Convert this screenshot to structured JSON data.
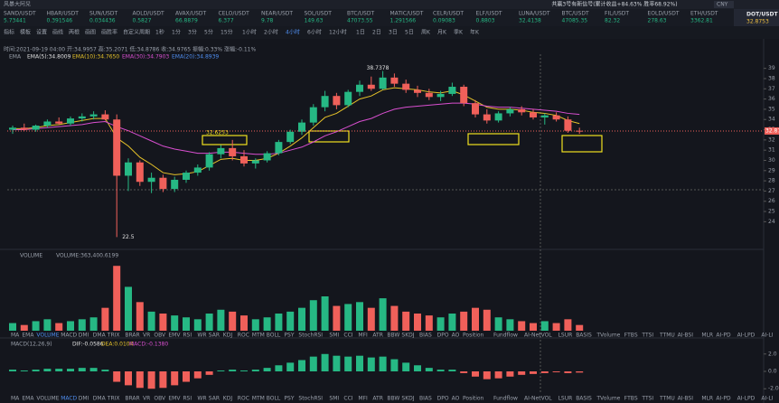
{
  "app": {
    "title": "风暴大阿兒",
    "signal": "共赢3号有新信号(累计收益+84.63% 胜率68.92%)",
    "currency": "CNY"
  },
  "tickers": [
    [
      "SAND/USDT",
      "5.73441"
    ],
    [
      "HBAR/USDT",
      "0.391546"
    ],
    [
      "SUN/USDT",
      "0.034436"
    ],
    [
      "AOLD/USDT",
      "0.5827"
    ],
    [
      "AVAX/USDT",
      "66.8879"
    ],
    [
      "CELO/USDT",
      "6.377"
    ],
    [
      "NEAR/USDT",
      "9.78"
    ],
    [
      "SOL/USDT",
      "149.63"
    ],
    [
      "BTC/USDT",
      "47073.55"
    ],
    [
      "MATIC/USDT",
      "1.291566"
    ],
    [
      "CELR/USDT",
      "0.09083"
    ],
    [
      "ELF/USDT",
      "0.8803"
    ],
    [
      "LUNA/USDT",
      "32.4138"
    ],
    [
      "BTC/USDT",
      "47085.35"
    ],
    [
      "FIL/USDT",
      "82.32"
    ],
    [
      "EOLD/USDT",
      "278.63"
    ],
    [
      "ETH/USDT",
      "3362.81"
    ]
  ],
  "toolbar": [
    "指标",
    "模板",
    "设置",
    "画线",
    "两根",
    "画图",
    "画胜率",
    "自定义周期",
    "1秒",
    "1分",
    "3分",
    "5分",
    "15分",
    "1小时",
    "2小时",
    "4小时",
    "6小时",
    "12小时",
    "1日",
    "2日",
    "3日",
    "5日",
    "周K",
    "月K",
    "季K",
    "年K"
  ],
  "symbol": {
    "name": "DOT/USDT",
    "price": "32.8753"
  },
  "info": {
    "bar": "时间:2021-09-19 04:00 开:34.9957 高:35.2071 低:34.8786 收:34.9765 振幅:0.33% 涨幅:-0.11%",
    "ema_name": "EMA",
    "ema5": "EMA(5):34.8009",
    "ema10": "EMA(10):34.7650",
    "ema30": "EMA(30):34.7903",
    "ema20": "EMA(20):34.8939"
  },
  "chart": {
    "type": "candlestick",
    "candles": [
      [
        33.0,
        33.4,
        32.6,
        33.2
      ],
      [
        33.2,
        33.6,
        32.9,
        33.0
      ],
      [
        33.0,
        33.5,
        32.8,
        33.4
      ],
      [
        33.4,
        34.0,
        33.2,
        33.8
      ],
      [
        33.8,
        34.2,
        33.5,
        33.6
      ],
      [
        33.6,
        34.3,
        33.4,
        34.1
      ],
      [
        34.1,
        34.6,
        33.8,
        34.3
      ],
      [
        34.3,
        34.8,
        34.0,
        34.5
      ],
      [
        34.5,
        34.9,
        33.9,
        34.0
      ],
      [
        34.0,
        34.5,
        22.5,
        28.5
      ],
      [
        28.5,
        30.2,
        27.0,
        29.8
      ],
      [
        29.8,
        30.0,
        27.5,
        27.9
      ],
      [
        27.9,
        28.8,
        26.8,
        28.3
      ],
      [
        28.3,
        28.6,
        26.9,
        27.2
      ],
      [
        27.2,
        28.4,
        26.9,
        28.1
      ],
      [
        28.1,
        29.0,
        27.8,
        28.8
      ],
      [
        28.8,
        29.6,
        28.5,
        29.3
      ],
      [
        29.3,
        30.8,
        29.0,
        30.6
      ],
      [
        30.6,
        31.5,
        30.2,
        31.2
      ],
      [
        31.2,
        32.0,
        30.0,
        30.4
      ],
      [
        30.4,
        31.0,
        29.4,
        29.7
      ],
      [
        29.7,
        30.2,
        29.2,
        30.0
      ],
      [
        30.0,
        30.9,
        29.8,
        30.7
      ],
      [
        30.7,
        32.0,
        30.5,
        31.8
      ],
      [
        31.8,
        33.0,
        31.6,
        32.8
      ],
      [
        32.8,
        34.0,
        32.5,
        33.7
      ],
      [
        33.7,
        35.5,
        33.4,
        35.2
      ],
      [
        35.2,
        36.8,
        34.8,
        36.3
      ],
      [
        36.3,
        36.6,
        35.0,
        35.4
      ],
      [
        35.4,
        36.9,
        35.2,
        36.7
      ],
      [
        36.7,
        37.8,
        36.3,
        37.4
      ],
      [
        37.4,
        38.2,
        36.8,
        37.0
      ],
      [
        37.0,
        38.7378,
        36.9,
        38.1
      ],
      [
        38.1,
        38.5,
        37.2,
        37.5
      ],
      [
        37.5,
        37.9,
        36.6,
        36.9
      ],
      [
        36.9,
        37.3,
        36.2,
        36.6
      ],
      [
        36.6,
        37.0,
        35.9,
        36.2
      ],
      [
        36.2,
        36.8,
        35.8,
        36.5
      ],
      [
        36.5,
        37.6,
        36.3,
        37.2
      ],
      [
        37.2,
        37.4,
        35.3,
        35.6
      ],
      [
        35.6,
        35.9,
        34.2,
        34.5
      ],
      [
        34.5,
        35.0,
        33.6,
        33.9
      ],
      [
        33.9,
        34.8,
        33.7,
        34.6
      ],
      [
        34.6,
        35.2,
        34.3,
        35.0
      ],
      [
        35.0,
        35.3,
        34.4,
        34.7
      ],
      [
        34.7,
        35.0,
        34.0,
        34.2
      ],
      [
        34.2,
        34.6,
        33.5,
        34.4
      ],
      [
        34.4,
        34.7,
        33.8,
        34.0
      ],
      [
        34.0,
        34.3,
        32.7,
        32.9
      ],
      [
        32.9,
        33.2,
        32.6,
        32.8753
      ]
    ],
    "ema_series": [
      {
        "color": "#e6c229",
        "values": [
          33.1,
          33.1,
          33.2,
          33.4,
          33.5,
          33.7,
          33.9,
          34.1,
          34.1,
          32.2,
          31.4,
          30.3,
          29.6,
          28.8,
          28.6,
          28.7,
          28.9,
          29.5,
          30.1,
          30.2,
          30.0,
          30.0,
          30.2,
          30.7,
          31.4,
          32.2,
          33.2,
          34.2,
          34.6,
          35.3,
          36.0,
          36.3,
          36.9,
          37.1,
          37.0,
          36.9,
          36.7,
          36.6,
          36.8,
          36.4,
          35.8,
          35.2,
          35.0,
          35.0,
          34.9,
          34.7,
          34.6,
          34.4,
          33.9,
          33.6
        ]
      },
      {
        "color": "#d94fd0",
        "values": [
          33.0,
          33.0,
          33.1,
          33.2,
          33.3,
          33.4,
          33.5,
          33.7,
          33.8,
          33.3,
          32.9,
          32.4,
          31.9,
          31.4,
          31.1,
          30.9,
          30.7,
          30.7,
          30.8,
          30.8,
          30.7,
          30.6,
          30.6,
          30.7,
          31.0,
          31.3,
          31.8,
          32.4,
          32.8,
          33.3,
          33.8,
          34.1,
          34.6,
          35.0,
          35.2,
          35.3,
          35.4,
          35.5,
          35.6,
          35.6,
          35.5,
          35.3,
          35.2,
          35.2,
          35.1,
          35.0,
          34.9,
          34.8,
          34.6,
          34.5
        ]
      }
    ],
    "ylim": [
      22,
      39.5
    ],
    "yticks": [
      24,
      25,
      26,
      27,
      28,
      29,
      30,
      31,
      32,
      33,
      34,
      35,
      36,
      37,
      38,
      39
    ],
    "high_label": "38.7378",
    "low_label": "22.5",
    "box_label": "32.6253",
    "last_price": 32.8753,
    "volume_label": "VOLUME",
    "volume_value": "VOLUME:363,400.6199",
    "volumes": [
      0.4,
      0.3,
      0.5,
      0.6,
      0.4,
      0.5,
      0.6,
      0.7,
      1.2,
      3.4,
      2.3,
      1.5,
      1.0,
      0.9,
      0.8,
      0.7,
      0.6,
      0.9,
      1.1,
      1.0,
      0.8,
      0.6,
      0.7,
      0.9,
      1.0,
      1.2,
      1.6,
      1.8,
      1.3,
      1.4,
      1.5,
      1.2,
      1.7,
      1.3,
      1.0,
      0.9,
      0.8,
      0.7,
      0.9,
      1.0,
      1.2,
      1.1,
      0.7,
      0.6,
      0.5,
      0.4,
      0.5,
      0.4,
      0.6,
      0.3
    ],
    "volume_ylim": [
      0,
      3.6
    ],
    "macd_label": "MACD(12,26,9)",
    "dif": "DIF:-0.0586",
    "dea": "DEA:0.0104",
    "macd_value": "MACD:-0.1380",
    "macd": [
      0.2,
      0.1,
      0.2,
      0.3,
      0.3,
      0.3,
      0.4,
      0.4,
      0.2,
      -1.2,
      -1.6,
      -1.9,
      -2.0,
      -1.9,
      -1.6,
      -1.2,
      -0.8,
      -0.4,
      0.1,
      0.2,
      0.1,
      0.2,
      0.4,
      0.7,
      1.0,
      1.3,
      1.7,
      2.0,
      1.8,
      1.7,
      1.8,
      1.6,
      1.7,
      1.4,
      1.0,
      0.7,
      0.4,
      0.2,
      0.2,
      -0.2,
      -0.6,
      -0.9,
      -0.8,
      -0.6,
      -0.4,
      -0.3,
      -0.2,
      -0.1,
      -0.2,
      -0.138
    ],
    "macd_ylim": [
      -2.6,
      2.6
    ],
    "macd_yticks": [
      {
        "value": 2,
        "label": "2.0"
      },
      {
        "value": 0,
        "label": "0.0"
      },
      {
        "value": -2,
        "label": "-2.0"
      }
    ]
  },
  "indicator_tabs": [
    "MA",
    "EMA",
    "VOLUME",
    "MACD",
    "DMI",
    "DMA",
    "TRIX",
    "BRAR",
    "VR",
    "OBV",
    "EMV",
    "RSI",
    "WR",
    "SAR",
    "KDJ",
    "ROC",
    "MTM",
    "BOLL",
    "PSY",
    "StochRSI",
    "SMI",
    "CCI",
    "MFI",
    "ATR",
    "BBW",
    "SKDJ",
    "BIAS",
    "DPO",
    "AO",
    "Position",
    "Fundflow",
    "AI-NetVOL",
    "LSUR",
    "BASIS",
    "TVolume",
    "FTBS",
    "TTSI",
    "TTMU",
    "AI-BSI",
    "MLR",
    "AI-PD",
    "AI-LPD",
    "AI-LI",
    "FR",
    "PFR",
    "AI-BST"
  ]
}
